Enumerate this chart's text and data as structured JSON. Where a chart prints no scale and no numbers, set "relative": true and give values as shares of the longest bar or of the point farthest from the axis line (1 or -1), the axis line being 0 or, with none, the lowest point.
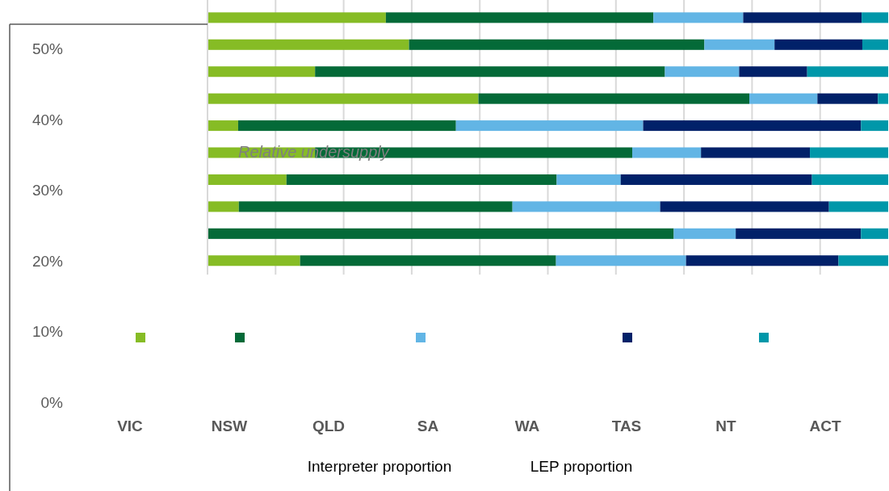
{
  "chart_data": [
    {
      "type": "bar",
      "orientation": "horizontal",
      "stacked": true,
      "relative": true,
      "grid": "x",
      "categories": [
        null,
        null,
        null,
        null,
        null,
        null,
        null,
        null,
        null,
        null
      ],
      "series": [
        {
          "color": "#86bc25",
          "values": [
            0.262,
            0.296,
            0.158,
            0.398,
            0.045,
            0.158,
            0.116,
            0.046,
            0,
            0.136
          ]
        },
        {
          "color": "#046a38",
          "values": [
            0.393,
            0.434,
            0.514,
            0.398,
            0.32,
            0.466,
            0.397,
            0.402,
            0.685,
            0.376
          ]
        },
        {
          "color": "#62b5e5",
          "values": [
            0.132,
            0.103,
            0.109,
            0.1,
            0.275,
            0.101,
            0.094,
            0.217,
            0.091,
            0.191
          ]
        },
        {
          "color": "#012169",
          "values": [
            0.174,
            0.129,
            0.1,
            0.089,
            0.32,
            0.16,
            0.281,
            0.248,
            0.184,
            0.224
          ]
        },
        {
          "color": "#0097a9",
          "values": [
            0.039,
            0.038,
            0.119,
            0.015,
            0.04,
            0.115,
            0.112,
            0.087,
            0.04,
            0.073
          ]
        }
      ]
    },
    {
      "type": "bar",
      "categories": [
        "VIC",
        "NSW",
        "QLD",
        "SA",
        "WA",
        "TAS",
        "NT",
        "ACT"
      ],
      "ylim": [
        0,
        0.5
      ],
      "yticks": [
        {
          "value": 0,
          "label": "0%"
        },
        {
          "value": 0.1,
          "label": "10%"
        },
        {
          "value": 0.2,
          "label": "20%"
        },
        {
          "value": 0.3,
          "label": "30%"
        },
        {
          "value": 0.4,
          "label": "40%"
        },
        {
          "value": 0.5,
          "label": "50%"
        }
      ],
      "annotations": [
        "Relative undersupply",
        "Interpreter proportion",
        "LEP proportion"
      ]
    }
  ]
}
